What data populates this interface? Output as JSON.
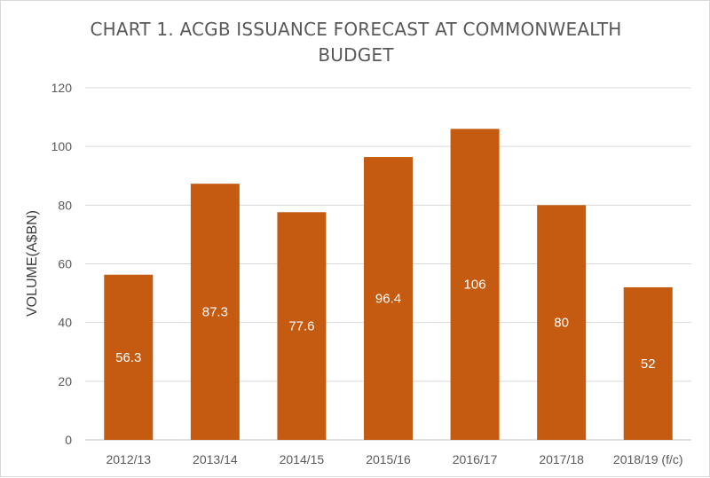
{
  "chart_data": {
    "type": "bar",
    "title_line1": "CHART 1. ACGB ISSUANCE FORECAST AT COMMONWEALTH",
    "title_line2": "BUDGET",
    "xlabel": "",
    "ylabel": "VOLUME(A$BN)",
    "categories": [
      "2012/13",
      "2013/14",
      "2014/15",
      "2015/16",
      "2016/17",
      "2017/18",
      "2018/19 (f/c)"
    ],
    "values": [
      56.3,
      87.3,
      77.6,
      96.4,
      106,
      80,
      52
    ],
    "data_labels": [
      "56.3",
      "87.3",
      "77.6",
      "96.4",
      "106",
      "80",
      "52"
    ],
    "ylim": [
      0,
      120
    ],
    "yticks": [
      0,
      20,
      40,
      60,
      80,
      100,
      120
    ],
    "grid": true,
    "legend": "none",
    "bar_color": "#c55a11",
    "gridline_color": "#d9d9d9"
  }
}
